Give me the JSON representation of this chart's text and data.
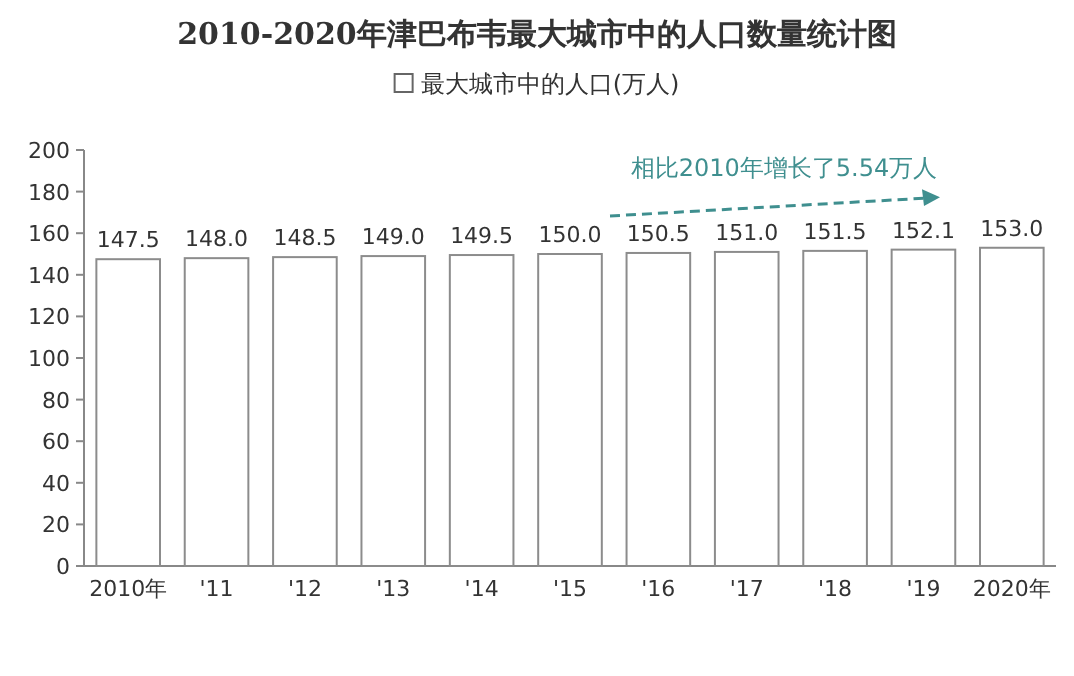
{
  "chart_data": {
    "type": "bar",
    "title": "2010-2020年津巴布韦最大城市中的人口数量统计图",
    "categories": [
      "2010年",
      "'11",
      "'12",
      "'13",
      "'14",
      "'15",
      "'16",
      "'17",
      "'18",
      "'19",
      "2020年"
    ],
    "series": [
      {
        "name": "最大城市中的人口(万人)",
        "color": "#ffffff",
        "values": [
          147.5,
          148.0,
          148.5,
          149.0,
          149.5,
          150.0,
          150.5,
          151.0,
          151.5,
          152.1,
          153.0
        ],
        "value_labels": [
          "147.5",
          "148.0",
          "148.5",
          "149.0",
          "149.5",
          "150.0",
          "150.5",
          "151.0",
          "151.5",
          "152.1",
          "153.0"
        ]
      }
    ],
    "ylim": [
      0,
      200
    ],
    "yticks": [
      0,
      20,
      40,
      60,
      80,
      100,
      120,
      140,
      160,
      180,
      200
    ],
    "legend": "top",
    "grid": false,
    "annotations": [
      "相比2010年增长了5.54万人"
    ]
  }
}
